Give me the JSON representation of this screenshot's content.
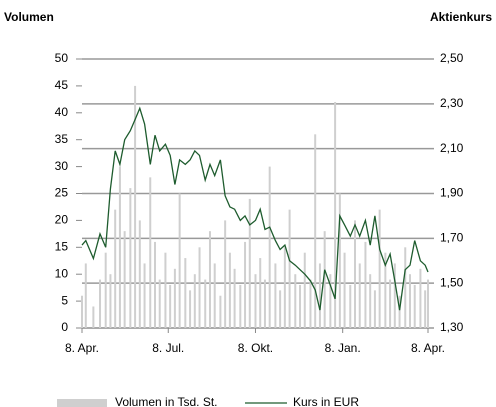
{
  "chart_data": {
    "type": "combo",
    "y_label": "Volumen",
    "y2_label": "Aktienkurs",
    "x": [
      0,
      4,
      12,
      19,
      25,
      30,
      35,
      40,
      45,
      51,
      56,
      61,
      66,
      72,
      77,
      82,
      88,
      93,
      98,
      103,
      109,
      114,
      119,
      124,
      130,
      135,
      140,
      146,
      151,
      156,
      161,
      167,
      172,
      177,
      183,
      188,
      193,
      198,
      204,
      209,
      214,
      219,
      225,
      230,
      235,
      241,
      246,
      251,
      256,
      262,
      267,
      272,
      277,
      283,
      288,
      293,
      299,
      304,
      309,
      314,
      320,
      325,
      330,
      335,
      341,
      346,
      351,
      357,
      362,
      365
    ],
    "xlim": [
      0,
      365
    ],
    "xticks": [
      {
        "value": 0,
        "label": "8. Apr."
      },
      {
        "value": 91,
        "label": "8. Jul."
      },
      {
        "value": 183,
        "label": "8. Okt."
      },
      {
        "value": 275,
        "label": "8. Jan."
      },
      {
        "value": 365,
        "label": "8. Apr."
      }
    ],
    "ylim": [
      0,
      50
    ],
    "yticks": [
      0,
      5,
      10,
      15,
      20,
      25,
      30,
      35,
      40,
      45,
      50
    ],
    "y2lim": [
      1.3,
      2.5
    ],
    "y2ticks": [
      {
        "value": 1.3,
        "label": "1,30"
      },
      {
        "value": 1.5,
        "label": "1,50"
      },
      {
        "value": 1.7,
        "label": "1,70"
      },
      {
        "value": 1.9,
        "label": "1,90"
      },
      {
        "value": 2.1,
        "label": "2,10"
      },
      {
        "value": 2.3,
        "label": "2,30"
      },
      {
        "value": 2.5,
        "label": "2,50"
      }
    ],
    "grid": true,
    "series": [
      {
        "name": "Volumen in Tsd. St.",
        "type": "bar",
        "color": "#cfcfcf",
        "axis": "y",
        "values": [
          6,
          12,
          4,
          9,
          14,
          10,
          22,
          30,
          18,
          26,
          45,
          20,
          12,
          28,
          16,
          9,
          14,
          8,
          11,
          25,
          13,
          7,
          10,
          15,
          9,
          18,
          12,
          6,
          20,
          14,
          11,
          8,
          16,
          24,
          10,
          13,
          9,
          30,
          12,
          7,
          15,
          22,
          10,
          8,
          14,
          9,
          36,
          12,
          18,
          10,
          42,
          25,
          14,
          8,
          20,
          12,
          16,
          10,
          7,
          22,
          14,
          9,
          12,
          6,
          15,
          10,
          8,
          11,
          7,
          9
        ]
      },
      {
        "name": "Kurs in EUR",
        "type": "line",
        "color": "#1e5c2e",
        "axis": "y2",
        "values": [
          1.67,
          1.69,
          1.61,
          1.72,
          1.66,
          1.92,
          2.09,
          2.03,
          2.14,
          2.18,
          2.23,
          2.28,
          2.21,
          2.03,
          2.16,
          2.09,
          2.12,
          2.07,
          1.94,
          2.05,
          2.03,
          2.05,
          2.09,
          2.07,
          1.96,
          2.03,
          1.98,
          2.05,
          1.89,
          1.84,
          1.83,
          1.78,
          1.8,
          1.76,
          1.78,
          1.83,
          1.74,
          1.75,
          1.69,
          1.65,
          1.67,
          1.6,
          1.58,
          1.56,
          1.54,
          1.51,
          1.47,
          1.38,
          1.56,
          1.49,
          1.43,
          1.8,
          1.76,
          1.71,
          1.76,
          1.71,
          1.78,
          1.67,
          1.8,
          1.65,
          1.58,
          1.63,
          1.51,
          1.38,
          1.56,
          1.58,
          1.69,
          1.6,
          1.58,
          1.55
        ]
      }
    ]
  }
}
